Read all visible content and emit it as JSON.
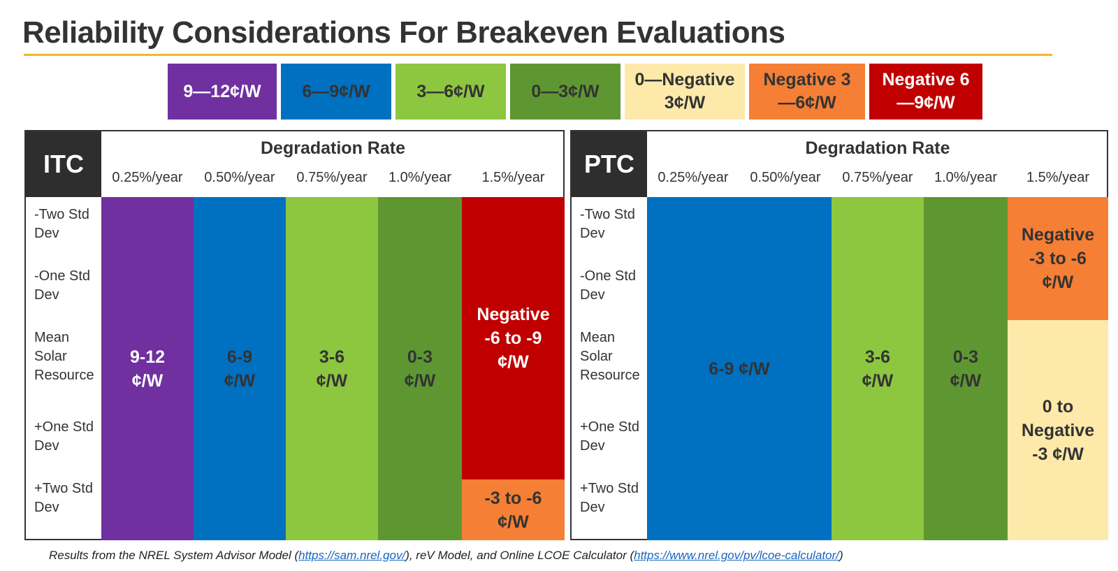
{
  "title": "Reliability Considerations For Breakeven Evaluations",
  "colors": {
    "purple": "#7030a0",
    "blue": "#0070c0",
    "light_green": "#8dc63f",
    "dark_green": "#5e9732",
    "cream": "#fde9a9",
    "orange": "#f47f35",
    "red": "#c00000",
    "accent_rule": "#f2b531"
  },
  "legend": [
    {
      "label": "9—12¢/W",
      "color": "#7030a0"
    },
    {
      "label": "6—9¢/W",
      "color": "#0070c0"
    },
    {
      "label": "3—6¢/W",
      "color": "#8dc63f"
    },
    {
      "label": "0—3¢/W",
      "color": "#5e9732"
    },
    {
      "label": "0—Negative 3¢/W",
      "color": "#fde9a9"
    },
    {
      "label": "Negative 3—6¢/W",
      "color": "#f47f35"
    },
    {
      "label": "Negative 6—9¢/W",
      "color": "#c00000"
    }
  ],
  "degradation_title": "Degradation Rate",
  "columns": [
    "0.25%/year",
    "0.50%/year",
    "0.75%/year",
    "1.0%/year",
    "1.5%/year"
  ],
  "rows": [
    "-Two Std Dev",
    "-One Std Dev",
    "Mean Solar Resource",
    "+One Std Dev",
    "+Two Std Dev"
  ],
  "itc": {
    "label": "ITC",
    "cells": [
      {
        "text": "9-12 ¢/W",
        "color": "#7030a0"
      },
      {
        "text": "6-9 ¢/W",
        "color": "#0070c0"
      },
      {
        "text": "3-6 ¢/W",
        "color": "#8dc63f"
      },
      {
        "text": "0-3 ¢/W",
        "color": "#5e9732"
      },
      {
        "text": "Negative -6 to -9 ¢/W",
        "color": "#c00000"
      },
      {
        "text": "-3 to -6 ¢/W",
        "color": "#f47f35"
      }
    ]
  },
  "ptc": {
    "label": "PTC",
    "cells": [
      {
        "text": "6-9 ¢/W",
        "color": "#0070c0"
      },
      {
        "text": "3-6 ¢/W",
        "color": "#8dc63f"
      },
      {
        "text": "0-3 ¢/W",
        "color": "#5e9732"
      },
      {
        "text": "Negative -3 to -6 ¢/W",
        "color": "#f47f35"
      },
      {
        "text": "0 to Negative -3 ¢/W",
        "color": "#fde9a9"
      }
    ]
  },
  "footnote": {
    "prefix": "Results from the NREL System Advisor Model (",
    "link1": "https://sam.nrel.gov/",
    "middle": "), reV Model, and Online LCOE Calculator (",
    "link2": "https://www.nrel.gov/pv/lcoe-calculator/",
    "suffix": ")"
  }
}
